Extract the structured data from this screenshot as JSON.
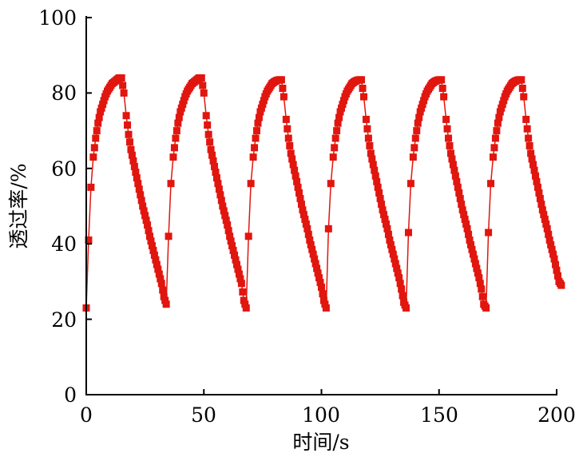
{
  "chart_data": {
    "type": "line",
    "title": "",
    "xlabel": "时间/s",
    "ylabel": "透过率/%",
    "xlim": [
      0,
      200
    ],
    "ylim": [
      0,
      100
    ],
    "xticks": [
      "0",
      "50",
      "100",
      "150",
      "200"
    ],
    "yticks": [
      "0",
      "20",
      "40",
      "60",
      "80",
      "100"
    ],
    "grid": false,
    "legend": "none",
    "series": [
      {
        "name": "透过率",
        "color": "#e0160f",
        "marker": "square",
        "x_start": 0,
        "x_step": 1,
        "y": [
          23,
          41,
          55,
          63,
          68,
          72,
          75,
          77,
          79,
          80.5,
          81.5,
          82.5,
          83,
          83.5,
          84,
          84,
          80,
          74,
          69,
          65,
          62,
          59,
          56,
          53,
          50,
          47.5,
          45,
          42,
          39.5,
          37,
          34.5,
          32,
          29.5,
          26,
          24,
          42,
          56,
          63,
          68,
          72,
          75,
          77,
          79,
          80.5,
          81.5,
          82.5,
          83,
          83.5,
          84,
          84,
          80,
          74,
          69,
          65,
          62,
          59,
          56,
          53,
          50,
          47.5,
          45,
          42,
          39.5,
          37,
          34.5,
          32,
          29.5,
          25,
          23,
          42,
          56,
          63,
          68,
          72,
          75,
          77,
          79,
          80.5,
          81.5,
          82.5,
          83,
          83.3,
          83.5,
          83.5,
          79,
          73,
          68,
          64,
          61,
          58,
          55,
          52,
          49,
          46.5,
          44,
          41,
          38.5,
          36,
          33.5,
          31,
          28.5,
          25,
          23,
          44,
          56,
          63,
          68,
          72,
          75,
          77,
          79,
          80.5,
          81.5,
          82.5,
          83,
          83.3,
          83.5,
          83.5,
          79,
          73,
          68,
          64,
          61,
          58,
          55,
          52,
          49,
          46.5,
          44,
          41,
          38.5,
          36,
          33.5,
          31,
          28,
          24.5,
          23,
          43,
          56,
          63,
          68,
          72,
          75,
          77,
          79,
          80.5,
          81.5,
          82.5,
          83,
          83.3,
          83.5,
          83.5,
          79,
          73,
          68,
          64,
          61,
          58,
          55,
          52,
          49,
          46.5,
          44,
          41,
          38.5,
          36,
          33.5,
          31,
          28,
          24,
          23,
          43,
          56,
          63,
          68,
          72,
          75,
          77,
          79,
          80.5,
          81.5,
          82.5,
          83,
          83.3,
          83.5,
          83.5,
          79,
          73,
          68,
          64,
          61,
          58,
          55,
          52,
          49,
          46.5,
          44,
          41,
          38.5,
          36,
          33,
          30,
          29
        ]
      }
    ]
  }
}
